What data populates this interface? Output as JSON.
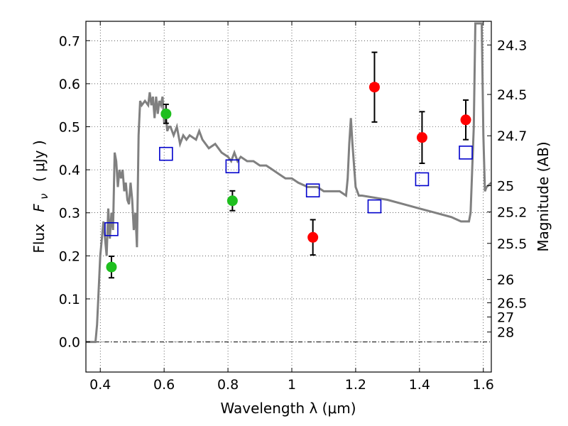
{
  "chart_data": {
    "type": "scatter",
    "title": "",
    "xlabel": "Wavelength  λ (μm)",
    "ylabel_main": "Flux",
    "ylabel_symbol": "F",
    "ylabel_subscript": "ν",
    "ylabel_unit": "( μJy )",
    "y2label": "Magnitude (AB)",
    "xlim": [
      0.355,
      1.625
    ],
    "ylim": [
      -0.07,
      0.745
    ],
    "grid": true,
    "x_ticks": [
      0.4,
      0.6,
      0.8,
      1.0,
      1.2,
      1.4,
      1.6
    ],
    "x_tick_labels": [
      "0.4",
      "0.6",
      "0.8",
      "1",
      "1.2",
      "1.4",
      "1.6"
    ],
    "y_ticks": [
      0.0,
      0.1,
      0.2,
      0.3,
      0.4,
      0.5,
      0.6,
      0.7
    ],
    "y_tick_labels": [
      "0.0",
      "0.1",
      "0.2",
      "0.3",
      "0.4",
      "0.5",
      "0.6",
      "0.7"
    ],
    "y2_ticks": [
      {
        "label": "24.3",
        "flux": 0.69
      },
      {
        "label": "24.5",
        "flux": 0.575
      },
      {
        "label": "24.7",
        "flux": 0.479
      },
      {
        "label": "25",
        "flux": 0.363
      },
      {
        "label": "25.2",
        "flux": 0.302
      },
      {
        "label": "25.5",
        "flux": 0.229
      },
      {
        "label": "26",
        "flux": 0.145
      },
      {
        "label": "26.5",
        "flux": 0.091
      },
      {
        "label": "27",
        "flux": 0.058
      },
      {
        "label": "28",
        "flux": 0.023
      }
    ],
    "series": [
      {
        "name": "green-observed",
        "color": "#1fbf1f",
        "marker": "circle",
        "points": [
          {
            "x": 0.435,
            "y": 0.174,
            "err": 0.025
          },
          {
            "x": 0.606,
            "y": 0.53,
            "err": 0.022
          },
          {
            "x": 0.814,
            "y": 0.328,
            "err": 0.023
          }
        ]
      },
      {
        "name": "red-observed",
        "color": "#ff0000",
        "marker": "circle",
        "points": [
          {
            "x": 1.066,
            "y": 0.243,
            "err": 0.041
          },
          {
            "x": 1.259,
            "y": 0.592,
            "err": 0.081
          },
          {
            "x": 1.408,
            "y": 0.475,
            "err": 0.06
          },
          {
            "x": 1.545,
            "y": 0.516,
            "err": 0.046
          }
        ]
      },
      {
        "name": "model-photometry",
        "color": "#0000cc",
        "marker": "open-square",
        "points": [
          {
            "x": 0.435,
            "y": 0.262
          },
          {
            "x": 0.606,
            "y": 0.437
          },
          {
            "x": 0.814,
            "y": 0.408
          },
          {
            "x": 1.066,
            "y": 0.352
          },
          {
            "x": 1.259,
            "y": 0.315
          },
          {
            "x": 1.408,
            "y": 0.378
          },
          {
            "x": 1.545,
            "y": 0.44
          }
        ]
      }
    ],
    "model_spectrum": {
      "name": "model-spectrum",
      "color": "#808080",
      "x": [
        0.355,
        0.385,
        0.39,
        0.4,
        0.41,
        0.42,
        0.425,
        0.43,
        0.435,
        0.44,
        0.445,
        0.45,
        0.455,
        0.46,
        0.465,
        0.47,
        0.475,
        0.48,
        0.485,
        0.49,
        0.495,
        0.5,
        0.505,
        0.51,
        0.515,
        0.52,
        0.525,
        0.53,
        0.54,
        0.55,
        0.555,
        0.56,
        0.565,
        0.57,
        0.575,
        0.58,
        0.585,
        0.59,
        0.595,
        0.6,
        0.605,
        0.61,
        0.615,
        0.62,
        0.63,
        0.64,
        0.65,
        0.66,
        0.67,
        0.68,
        0.7,
        0.71,
        0.72,
        0.74,
        0.76,
        0.78,
        0.8,
        0.81,
        0.82,
        0.83,
        0.84,
        0.86,
        0.88,
        0.9,
        0.92,
        0.94,
        0.96,
        0.98,
        1.0,
        1.02,
        1.05,
        1.08,
        1.1,
        1.13,
        1.15,
        1.17,
        1.175,
        1.18,
        1.185,
        1.19,
        1.2,
        1.205,
        1.21,
        1.22,
        1.3,
        1.35,
        1.4,
        1.45,
        1.5,
        1.53,
        1.555,
        1.56,
        1.57,
        1.575,
        1.58,
        1.585,
        1.595,
        1.6,
        1.605,
        1.61,
        1.625
      ],
      "y": [
        0.0,
        0.0,
        0.04,
        0.2,
        0.28,
        0.2,
        0.31,
        0.24,
        0.3,
        0.26,
        0.44,
        0.42,
        0.36,
        0.4,
        0.38,
        0.4,
        0.35,
        0.37,
        0.33,
        0.32,
        0.37,
        0.33,
        0.26,
        0.3,
        0.22,
        0.48,
        0.56,
        0.55,
        0.56,
        0.55,
        0.58,
        0.55,
        0.57,
        0.52,
        0.57,
        0.53,
        0.56,
        0.55,
        0.57,
        0.51,
        0.53,
        0.49,
        0.5,
        0.5,
        0.48,
        0.5,
        0.46,
        0.48,
        0.47,
        0.48,
        0.47,
        0.49,
        0.47,
        0.45,
        0.46,
        0.44,
        0.43,
        0.42,
        0.44,
        0.42,
        0.43,
        0.42,
        0.42,
        0.41,
        0.41,
        0.4,
        0.39,
        0.38,
        0.38,
        0.37,
        0.36,
        0.36,
        0.35,
        0.35,
        0.35,
        0.34,
        0.38,
        0.46,
        0.52,
        0.46,
        0.36,
        0.35,
        0.34,
        0.34,
        0.33,
        0.32,
        0.31,
        0.3,
        0.29,
        0.28,
        0.28,
        0.3,
        0.5,
        0.74,
        0.74,
        0.74,
        0.74,
        0.48,
        0.35,
        0.36,
        0.37
      ]
    }
  }
}
